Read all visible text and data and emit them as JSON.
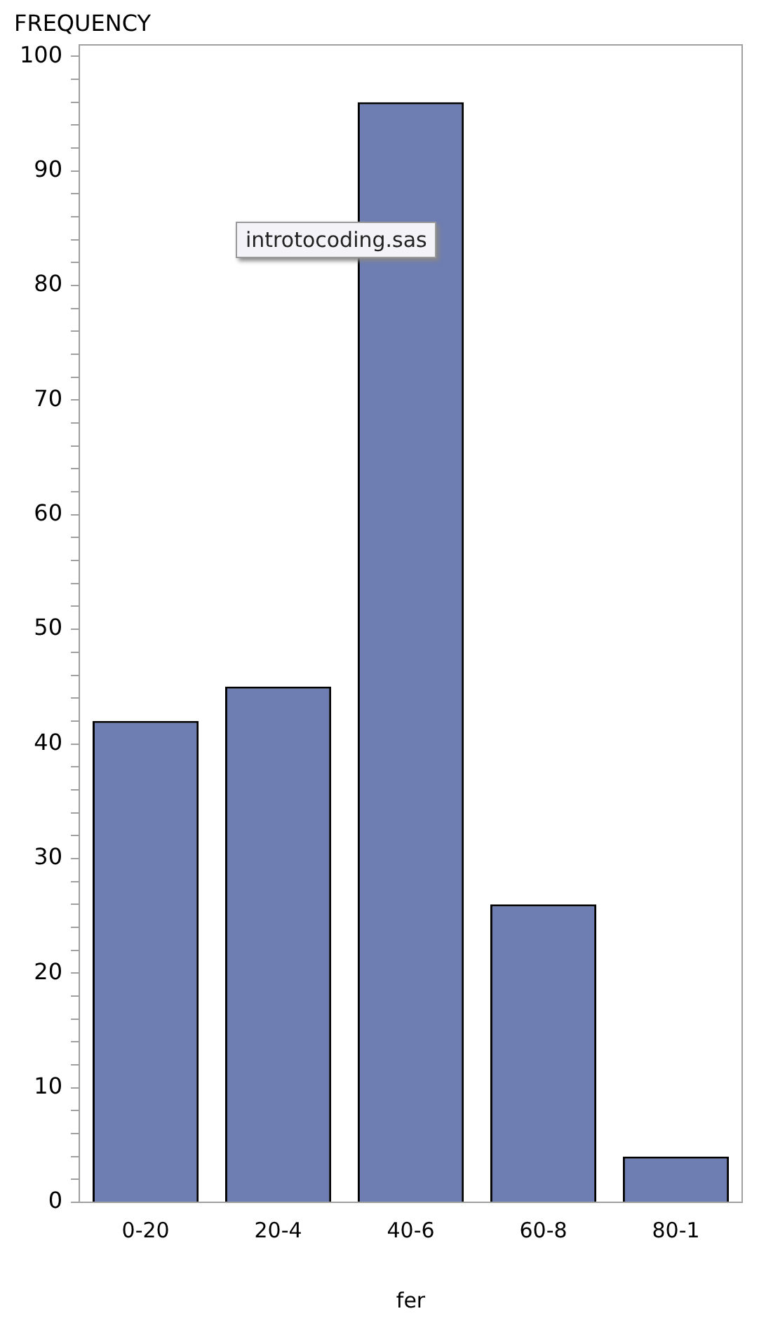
{
  "chart_data": {
    "type": "bar",
    "ylabel": "FREQUENCY",
    "xlabel": "fer",
    "categories": [
      "0-20",
      "20-4",
      "40-6",
      "60-8",
      "80-1"
    ],
    "values": [
      42,
      45,
      96,
      26,
      4
    ],
    "color": "#6e7db2",
    "ylim": [
      0,
      101
    ],
    "yticks": [
      0,
      {
        "value": 2,
        "label": null
      },
      {
        "value": 4,
        "label": null
      },
      {
        "value": 6,
        "label": null
      },
      {
        "value": 8,
        "label": null
      },
      10,
      {
        "value": 12,
        "label": null
      },
      {
        "value": 14,
        "label": null
      },
      {
        "value": 16,
        "label": null
      },
      {
        "value": 18,
        "label": null
      },
      20,
      {
        "value": 22,
        "label": null
      },
      {
        "value": 24,
        "label": null
      },
      {
        "value": 26,
        "label": null
      },
      {
        "value": 28,
        "label": null
      },
      30,
      {
        "value": 32,
        "label": null
      },
      {
        "value": 34,
        "label": null
      },
      {
        "value": 36,
        "label": null
      },
      {
        "value": 38,
        "label": null
      },
      40,
      {
        "value": 42,
        "label": null
      },
      {
        "value": 44,
        "label": null
      },
      {
        "value": 46,
        "label": null
      },
      {
        "value": 48,
        "label": null
      },
      50,
      {
        "value": 52,
        "label": null
      },
      {
        "value": 54,
        "label": null
      },
      {
        "value": 56,
        "label": null
      },
      {
        "value": 58,
        "label": null
      },
      60,
      {
        "value": 62,
        "label": null
      },
      {
        "value": 64,
        "label": null
      },
      {
        "value": 66,
        "label": null
      },
      {
        "value": 68,
        "label": null
      },
      70,
      {
        "value": 72,
        "label": null
      },
      {
        "value": 74,
        "label": null
      },
      {
        "value": 76,
        "label": null
      },
      {
        "value": 78,
        "label": null
      },
      80,
      {
        "value": 82,
        "label": null
      },
      {
        "value": 84,
        "label": null
      },
      {
        "value": 86,
        "label": null
      },
      {
        "value": 88,
        "label": null
      },
      90,
      {
        "value": 92,
        "label": null
      },
      {
        "value": 94,
        "label": null
      },
      {
        "value": 96,
        "label": null
      },
      {
        "value": 98,
        "label": null
      },
      100
    ],
    "grid": false,
    "legend": false,
    "annotations": [
      "introtocoding.sas"
    ]
  }
}
